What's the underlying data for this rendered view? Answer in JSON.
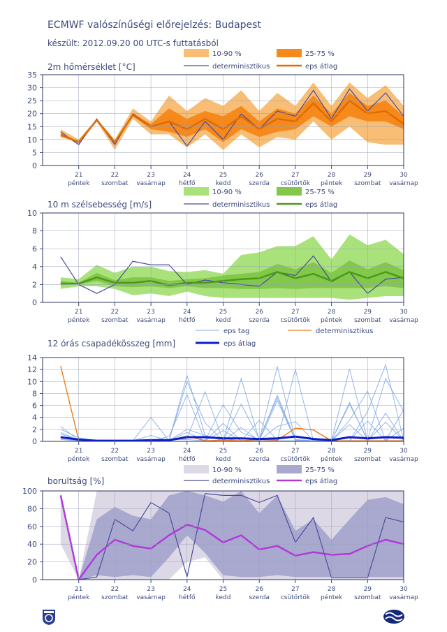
{
  "header": {
    "title": "ECMWF valószínűségi előrejelzés: Budapest",
    "subtitle": "készült: 2012.09.20 00 UTC-s futtatásból"
  },
  "days": [
    "21",
    "22",
    "23",
    "24",
    "25",
    "26",
    "27",
    "28",
    "29",
    "30"
  ],
  "weekdays": [
    "péntek",
    "szombat",
    "vasárnap",
    "hétfő",
    "kedd",
    "szerda",
    "csütörtök",
    "péntek",
    "szombat",
    "vasárnap"
  ],
  "colors": {
    "temp_outer": "#f9be75",
    "temp_inner": "#f5891c",
    "temp_mean": "#e06a00",
    "wind_outer": "#a9e27a",
    "wind_inner": "#82c84a",
    "wind_mean": "#4a9a18",
    "precip_member": "#8aaee8",
    "precip_det": "#f07b1a",
    "precip_mean": "#0a1ecc",
    "cloud_outer": "#dcd8e6",
    "cloud_inner": "#a9a9d0",
    "cloud_mean": "#b03ad8",
    "deterministic": "#4a4a9a"
  },
  "chart_data": [
    {
      "type": "area",
      "title": "2m hőmérséklet [°C]",
      "legend": {
        "outer": "10-90 %",
        "inner": "25-75 %",
        "det": "determinisztikus",
        "mean": "eps átlag"
      },
      "ylim": [
        0,
        35
      ],
      "yticks": [
        0,
        5,
        10,
        15,
        20,
        25,
        30,
        35
      ],
      "x": [
        0.5,
        1.0,
        1.5,
        2.0,
        2.5,
        3.0,
        3.5,
        4.0,
        4.5,
        5.0,
        5.5,
        6.0,
        6.5,
        7.0,
        7.5,
        8.0,
        8.5,
        9.0,
        9.5,
        10.0
      ],
      "p10": [
        12,
        8,
        17,
        6,
        18,
        12,
        12,
        7,
        12,
        6,
        12,
        7,
        11,
        10,
        17,
        10,
        15,
        9,
        8,
        8
      ],
      "p25": [
        11,
        9,
        17,
        8,
        19,
        14,
        13,
        11,
        14,
        9,
        14,
        11,
        13,
        14,
        19,
        15,
        19,
        17,
        17,
        14
      ],
      "p75": [
        12,
        9,
        18,
        9,
        20,
        16,
        22,
        18,
        21,
        19,
        23,
        17,
        22,
        20,
        27,
        20,
        28,
        23,
        25,
        19
      ],
      "p90": [
        14,
        10,
        18,
        10,
        22,
        17,
        27,
        21,
        26,
        23,
        29,
        21,
        28,
        23,
        32,
        23,
        32,
        26,
        31,
        23
      ],
      "det": [
        13,
        8,
        18,
        8,
        20,
        15,
        17,
        7.5,
        17,
        10,
        20,
        14,
        21,
        19,
        29,
        18,
        29.5,
        21,
        28,
        19
      ],
      "mean": [
        12,
        9,
        17.5,
        9,
        19.5,
        15,
        17,
        14,
        18,
        14,
        19,
        14,
        18,
        17,
        24,
        17,
        25,
        20,
        21,
        16
      ]
    },
    {
      "type": "area",
      "title": "10 m szélsebesség [m/s]",
      "legend": {
        "outer": "10-90 %",
        "inner": "25-75 %",
        "det": "determinisztikus",
        "mean": "eps átlag"
      },
      "ylim": [
        0,
        10
      ],
      "yticks": [
        0,
        2,
        4,
        6,
        8,
        10
      ],
      "x": [
        0.5,
        1.0,
        1.5,
        2.0,
        2.5,
        3.0,
        3.5,
        4.0,
        4.5,
        5.0,
        5.5,
        6.0,
        6.5,
        7.0,
        7.5,
        8.0,
        8.5,
        9.0,
        9.5,
        10.0
      ],
      "p10": [
        1.5,
        1.8,
        1.8,
        1.5,
        0.8,
        1.0,
        0.7,
        1.2,
        0.7,
        0.5,
        0.5,
        0.5,
        0.5,
        0.5,
        0.5,
        0.5,
        0.3,
        0.5,
        0.7,
        0.7
      ],
      "p25": [
        1.9,
        2.0,
        2.4,
        1.8,
        1.7,
        1.8,
        1.6,
        1.8,
        1.6,
        1.6,
        1.5,
        1.5,
        1.6,
        1.5,
        1.6,
        1.6,
        1.6,
        1.6,
        1.8,
        1.6
      ],
      "p75": [
        2.4,
        2.2,
        3.3,
        2.5,
        2.8,
        2.8,
        2.4,
        2.6,
        2.7,
        3.0,
        3.2,
        3.4,
        4.3,
        3.7,
        4.5,
        3.3,
        4.7,
        3.7,
        4.5,
        3.6
      ],
      "p90": [
        2.8,
        2.6,
        4.2,
        3.3,
        4.0,
        4.0,
        3.5,
        3.4,
        3.6,
        3.2,
        5.3,
        5.6,
        6.3,
        6.3,
        7.4,
        4.8,
        7.6,
        6.4,
        7.0,
        5.4
      ],
      "det": [
        5.1,
        2.0,
        1.0,
        2.0,
        4.6,
        4.2,
        4.2,
        2.0,
        2.5,
        2.2,
        2.0,
        1.8,
        3.4,
        3.0,
        5.2,
        2.3,
        3.4,
        1.0,
        2.6,
        2.8
      ],
      "mean": [
        2.1,
        2.1,
        2.8,
        2.2,
        2.2,
        2.4,
        1.9,
        2.2,
        2.2,
        2.4,
        2.6,
        2.7,
        3.4,
        2.7,
        3.2,
        2.4,
        3.4,
        2.7,
        3.4,
        2.7
      ]
    },
    {
      "type": "line",
      "title": "12 órás csapadékösszeg [mm]",
      "legend": {
        "member": "eps tag",
        "det": "determinisztikus",
        "mean": "eps átlag"
      },
      "ylim": [
        0,
        14
      ],
      "yticks": [
        0,
        2,
        4,
        6,
        8,
        10,
        12,
        14
      ],
      "x": [
        0.5,
        1.0,
        1.5,
        2.0,
        2.5,
        3.0,
        3.5,
        4.0,
        4.5,
        5.0,
        5.5,
        6.0,
        6.5,
        7.0,
        7.5,
        8.0,
        8.5,
        9.0,
        9.5,
        10.0
      ],
      "members": [
        [
          2.0,
          0.6,
          0.1,
          0.1,
          0.1,
          0.1,
          0.1,
          11.0,
          1.0,
          0.1,
          0.5,
          0.1,
          6.8,
          0.2,
          0.1,
          0.1,
          6.2,
          0.3,
          10.5,
          5.0
        ],
        [
          1.2,
          0.3,
          0.1,
          0.1,
          0.1,
          4.0,
          0.1,
          0.5,
          8.3,
          0.1,
          10.5,
          0.2,
          12.5,
          0.3,
          0.1,
          0.1,
          12.1,
          0.1,
          4.7,
          0.1
        ],
        [
          0.5,
          0.1,
          0.1,
          0.1,
          0.1,
          0.1,
          0.1,
          10.0,
          3.1,
          0.1,
          6.2,
          0.4,
          7.3,
          0.1,
          0.1,
          0.1,
          3.5,
          8.4,
          0.1,
          0.1
        ],
        [
          2.5,
          0.2,
          0.1,
          0.1,
          0.1,
          0.1,
          0.3,
          0.3,
          0.1,
          3.0,
          0.1,
          3.5,
          0.2,
          12.0,
          0.1,
          0.1,
          0.1,
          5.0,
          12.8,
          0.1
        ],
        [
          1.5,
          0.2,
          0.1,
          0.1,
          0.1,
          0.1,
          0.1,
          1.5,
          0.1,
          6.1,
          1.5,
          0.3,
          7.7,
          0.3,
          0.1,
          0.1,
          6.5,
          0.1,
          0.1,
          5.3
        ],
        [
          0.8,
          0.1,
          0.1,
          0.1,
          0.1,
          1.0,
          0.1,
          2.0,
          1.0,
          0.1,
          2.3,
          0.1,
          2.5,
          3.3,
          0.1,
          0.1,
          2.8,
          0.1,
          3.2,
          0.1
        ],
        [
          0.3,
          0.1,
          0.1,
          0.1,
          0.1,
          0.1,
          0.8,
          7.8,
          0.1,
          1.8,
          0.1,
          0.1,
          0.1,
          0.1,
          0.1,
          0.1,
          0.1,
          3.4,
          0.1,
          2.2
        ]
      ],
      "det": [
        12.6,
        0.2,
        0.1,
        0.1,
        0.1,
        0.1,
        0.1,
        0.9,
        0.1,
        0.2,
        0.1,
        0.3,
        0.2,
        2.2,
        1.9,
        0.1,
        0.1,
        0.1,
        0.1,
        0.1
      ],
      "mean": [
        0.7,
        0.3,
        0.1,
        0.1,
        0.1,
        0.2,
        0.2,
        0.7,
        0.7,
        0.5,
        0.5,
        0.4,
        0.5,
        0.8,
        0.4,
        0.2,
        0.7,
        0.5,
        0.7,
        0.6
      ]
    },
    {
      "type": "area",
      "title": "borultság [%]",
      "legend": {
        "outer": "10-90 %",
        "inner": "25-75 %",
        "det": "determinisztikus",
        "mean": "eps átlag"
      },
      "ylim": [
        0,
        100
      ],
      "yticks": [
        0,
        20,
        40,
        60,
        80,
        100
      ],
      "x": [
        0.5,
        1.0,
        1.5,
        2.0,
        2.5,
        3.0,
        3.5,
        4.0,
        4.5,
        5.0,
        5.5,
        6.0,
        6.5,
        7.0,
        7.5,
        8.0,
        8.5,
        9.0,
        9.5,
        10.0
      ],
      "p10": [
        40,
        0,
        0,
        0,
        0,
        0,
        0,
        20,
        25,
        0,
        0,
        0,
        0,
        0,
        0,
        0,
        0,
        0,
        0,
        0
      ],
      "p25": [
        90,
        0,
        5,
        3,
        5,
        3,
        25,
        50,
        30,
        5,
        3,
        3,
        5,
        3,
        3,
        3,
        3,
        3,
        3,
        3
      ],
      "p75": [
        95,
        0,
        68,
        82,
        72,
        68,
        95,
        100,
        95,
        88,
        100,
        75,
        95,
        55,
        68,
        45,
        68,
        90,
        93,
        85
      ],
      "p90": [
        100,
        0,
        100,
        100,
        100,
        100,
        100,
        100,
        100,
        100,
        100,
        100,
        100,
        100,
        100,
        100,
        100,
        100,
        100,
        100
      ],
      "det": [
        95,
        0,
        3,
        68,
        55,
        87,
        75,
        3,
        97,
        95,
        95,
        87,
        95,
        42,
        70,
        2,
        2,
        2,
        70,
        65
      ],
      "mean": [
        95,
        0,
        28,
        45,
        38,
        35,
        50,
        62,
        56,
        42,
        50,
        34,
        38,
        27,
        31,
        28,
        29,
        38,
        45,
        40
      ]
    }
  ]
}
